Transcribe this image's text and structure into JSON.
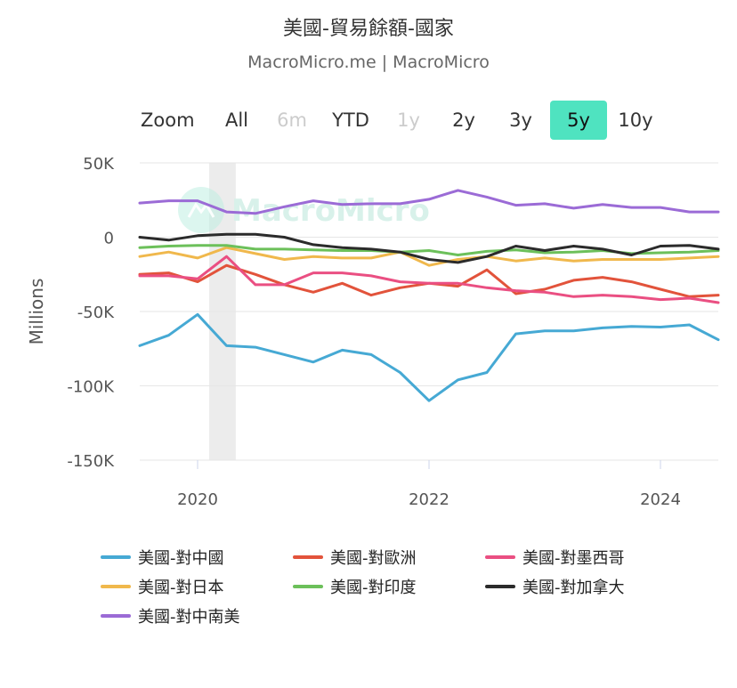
{
  "header": {
    "title": "美國-貿易餘額-國家",
    "subtitle": "MacroMicro.me | MacroMicro"
  },
  "range_selector": {
    "zoom_label": "Zoom",
    "buttons": [
      {
        "label": "All",
        "state": "normal"
      },
      {
        "label": "6m",
        "state": "disabled"
      },
      {
        "label": "YTD",
        "state": "normal"
      },
      {
        "label": "1y",
        "state": "disabled"
      },
      {
        "label": "2y",
        "state": "normal"
      },
      {
        "label": "3y",
        "state": "normal"
      },
      {
        "label": "5y",
        "state": "active"
      },
      {
        "label": "10y",
        "state": "normal"
      }
    ]
  },
  "watermark": "MacroMicro",
  "colors": {
    "accent": "#4fe3c0",
    "grid": "#e6e6e6",
    "band": "#ececec"
  },
  "chart_data": {
    "type": "line",
    "ylabel": "Millions",
    "ylim": [
      -150000,
      50000
    ],
    "yticks": [
      50000,
      0,
      -50000,
      -100000,
      -150000
    ],
    "ytick_labels": [
      "50K",
      "0",
      "-50K",
      "-100K",
      "-150K"
    ],
    "xlim": [
      2019.5,
      2024.5
    ],
    "xticks": [
      2020,
      2022,
      2024
    ],
    "xtick_labels": [
      "2020",
      "2022",
      "2024"
    ],
    "grid": true,
    "legend_position": "bottom",
    "shaded_band": [
      2020.1,
      2020.33
    ],
    "x": [
      2019.5,
      2019.75,
      2020.0,
      2020.25,
      2020.5,
      2020.75,
      2021.0,
      2021.25,
      2021.5,
      2021.75,
      2022.0,
      2022.25,
      2022.5,
      2022.75,
      2023.0,
      2023.25,
      2023.5,
      2023.75,
      2024.0,
      2024.25,
      2024.5
    ],
    "series": [
      {
        "name": "美國-對中國",
        "color": "#46a9d4",
        "values": [
          -73000,
          -66000,
          -52000,
          -73000,
          -74000,
          -79000,
          -84000,
          -76000,
          -79000,
          -91000,
          -110000,
          -96000,
          -91000,
          -65000,
          -63000,
          -63000,
          -61000,
          -60000,
          -60500,
          -59000,
          -69000
        ]
      },
      {
        "name": "美國-對歐洲",
        "color": "#e2533b",
        "values": [
          -25000,
          -24000,
          -30000,
          -19000,
          -25000,
          -32000,
          -37000,
          -31000,
          -39000,
          -34000,
          -31000,
          -33000,
          -22000,
          -38000,
          -35000,
          -29000,
          -27000,
          -30000,
          -35000,
          -40000,
          -39000
        ]
      },
      {
        "name": "美國-對墨西哥",
        "color": "#ea4f82",
        "values": [
          -26000,
          -26000,
          -28000,
          -13000,
          -32000,
          -32000,
          -24000,
          -24000,
          -26000,
          -30000,
          -31000,
          -31000,
          -34000,
          -36000,
          -37000,
          -40000,
          -39000,
          -40000,
          -42000,
          -41000,
          -44000
        ]
      },
      {
        "name": "美國-對日本",
        "color": "#f0b84c",
        "values": [
          -13000,
          -10000,
          -14000,
          -7000,
          -11000,
          -15000,
          -13000,
          -14000,
          -14000,
          -10000,
          -19000,
          -15000,
          -13000,
          -16000,
          -14000,
          -16000,
          -15000,
          -15000,
          -15000,
          -14000,
          -13000
        ]
      },
      {
        "name": "美國-對印度",
        "color": "#6cc05a",
        "values": [
          -7000,
          -6000,
          -5500,
          -5500,
          -8000,
          -8000,
          -8500,
          -9000,
          -9000,
          -10000,
          -9000,
          -12000,
          -9500,
          -8500,
          -10500,
          -10000,
          -9000,
          -11000,
          -10500,
          -10000,
          -9000
        ]
      },
      {
        "name": "美國-對加拿大",
        "color": "#2b2b2b",
        "values": [
          0,
          -2000,
          1000,
          2000,
          2000,
          0,
          -5000,
          -7000,
          -8000,
          -10000,
          -15000,
          -17000,
          -13000,
          -6000,
          -9000,
          -6000,
          -8000,
          -12000,
          -6000,
          -5500,
          -8000
        ]
      },
      {
        "name": "美國-對中南美",
        "color": "#9b6bd6",
        "values": [
          23000,
          24500,
          24500,
          17000,
          16000,
          20500,
          24500,
          22000,
          22500,
          22500,
          25500,
          31500,
          27000,
          21500,
          22500,
          19500,
          22000,
          20000,
          20000,
          17000,
          17000
        ]
      }
    ]
  }
}
